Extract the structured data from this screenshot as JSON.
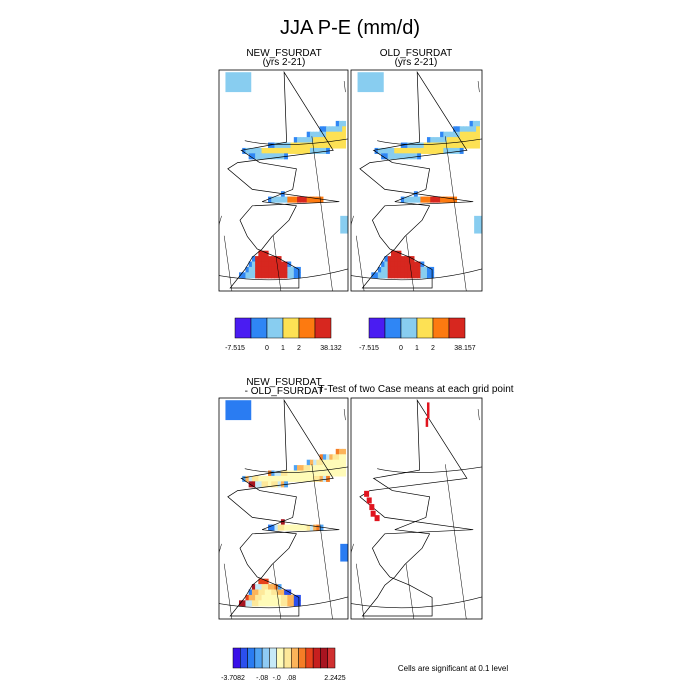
{
  "title": "JJA P-E (mm/d)",
  "chart_data": [
    {
      "type": "heatmap",
      "panel": "new",
      "title": "NEW_FSURDAT",
      "subtitle": "(yrs 2-21)",
      "colorbar": {
        "colors": [
          "#4a1cf2",
          "#2f86f5",
          "#88cdf0",
          "#fde154",
          "#fd7a10",
          "#d7271f"
        ],
        "tick_labels": [
          "-7.515",
          "0",
          "1",
          "2",
          "38.132"
        ]
      }
    },
    {
      "type": "heatmap",
      "panel": "old",
      "title": "OLD_FSURDAT",
      "subtitle": "(yrs 2-21)",
      "colorbar": {
        "colors": [
          "#4a1cf2",
          "#2f86f5",
          "#88cdf0",
          "#fde154",
          "#fd7a10",
          "#d7271f"
        ],
        "tick_labels": [
          "-7.515",
          "0",
          "1",
          "2",
          "38.157"
        ]
      }
    },
    {
      "type": "heatmap",
      "panel": "diff",
      "title_line1": "NEW_FSURDAT",
      "title_line2": "- OLD_FSURDAT",
      "colorbar": {
        "colors": [
          "#3a10e8",
          "#2b4fee",
          "#2a7cf2",
          "#4fa3f3",
          "#8fcbf5",
          "#c6e9f7",
          "#fffbb8",
          "#fde89a",
          "#fcb45a",
          "#f57d26",
          "#e8431c",
          "#c71f1f",
          "#a81420",
          "#d03030"
        ],
        "tick_labels": [
          "-3.7082",
          "-.08",
          "-.0",
          ".08",
          "2.2425"
        ]
      }
    },
    {
      "type": "heatmap",
      "panel": "ttest",
      "title": "T-Test of two Case means at each grid point",
      "note": "Cells are significant at 0.1 level",
      "significant_color": "#e0141e"
    }
  ]
}
